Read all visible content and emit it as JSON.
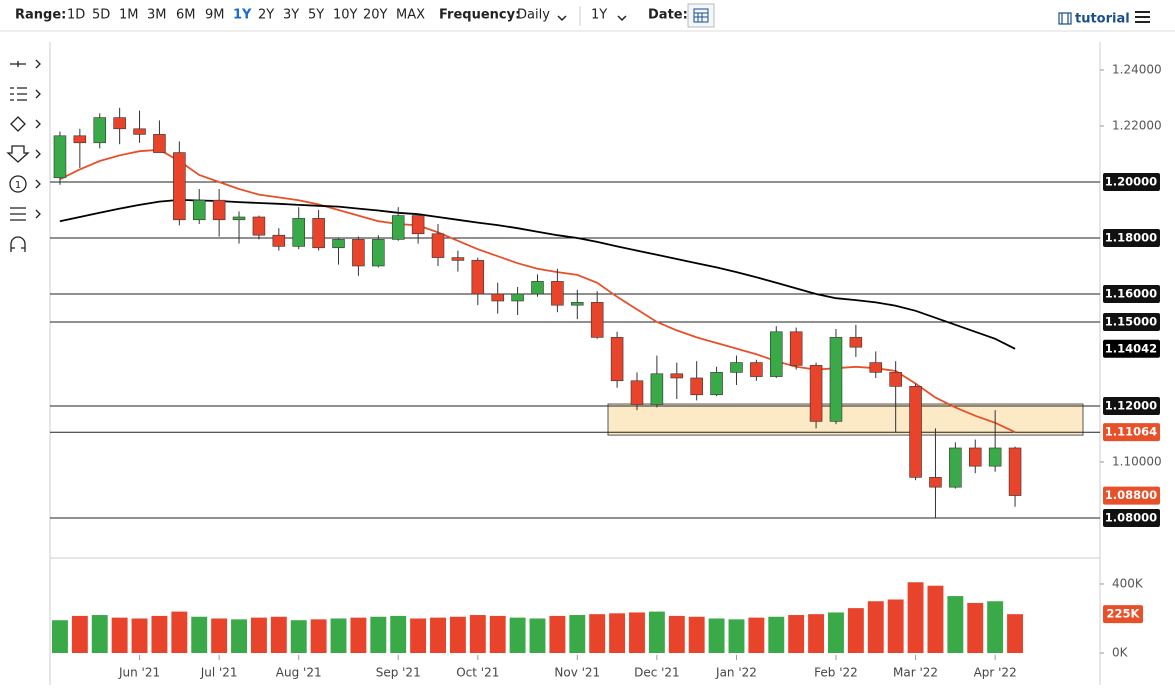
{
  "toolbar": {
    "range_label": "Range:",
    "ranges": [
      "1D",
      "5D",
      "1M",
      "3M",
      "6M",
      "9M",
      "1Y",
      "2Y",
      "3Y",
      "5Y",
      "10Y",
      "20Y",
      "MAX"
    ],
    "active_range": 6,
    "frequency_label": "Frequency:",
    "frequency": "Daily",
    "period": "1Y",
    "date_label": "Date:",
    "tutorial": "tutorial"
  },
  "chart_data": {
    "type": "candlestick",
    "categories": [
      null,
      null,
      null,
      null,
      "Jun '21",
      null,
      null,
      null,
      "Jul '21",
      null,
      null,
      null,
      "Aug '21",
      null,
      null,
      null,
      null,
      "Sep '21",
      null,
      null,
      null,
      "Oct '21",
      null,
      null,
      null,
      null,
      "Nov '21",
      null,
      null,
      null,
      "Dec '21",
      null,
      null,
      null,
      "Jan '22",
      null,
      null,
      null,
      null,
      "Feb '22",
      null,
      null,
      null,
      "Mar '22",
      null,
      null,
      null,
      "Apr '22",
      null
    ],
    "open": [
      1.2015,
      1.2165,
      1.214,
      1.223,
      1.219,
      1.217,
      1.2105,
      1.1865,
      1.1935,
      1.1865,
      1.1875,
      1.181,
      1.177,
      1.187,
      1.1765,
      1.1795,
      1.17,
      1.1795,
      1.188,
      1.1815,
      1.173,
      1.172,
      1.16,
      1.1575,
      1.16,
      1.1645,
      1.156,
      1.157,
      1.1445,
      1.129,
      1.1205,
      1.1315,
      1.13,
      1.124,
      1.132,
      1.1355,
      1.1305,
      1.1465,
      1.1345,
      1.1145,
      1.1445,
      1.1355,
      1.132,
      1.127,
      1.0945,
      1.091,
      1.105,
      1.0985,
      1.105
    ],
    "high": [
      1.218,
      1.219,
      1.2245,
      1.2265,
      1.2255,
      1.222,
      1.2145,
      1.1975,
      1.1975,
      1.1895,
      1.188,
      1.1835,
      1.191,
      1.19,
      1.18,
      1.1805,
      1.181,
      1.191,
      1.1885,
      1.185,
      1.1755,
      1.173,
      1.164,
      1.1625,
      1.167,
      1.169,
      1.1615,
      1.161,
      1.1465,
      1.132,
      1.138,
      1.1355,
      1.136,
      1.134,
      1.138,
      1.1365,
      1.1485,
      1.148,
      1.1355,
      1.1475,
      1.149,
      1.1395,
      1.136,
      1.128,
      1.112,
      1.107,
      1.108,
      1.1185,
      1.1055
    ],
    "low": [
      1.199,
      1.205,
      1.212,
      1.2135,
      1.214,
      1.211,
      1.1845,
      1.185,
      1.1805,
      1.178,
      1.1795,
      1.1755,
      1.176,
      1.1755,
      1.1705,
      1.1665,
      1.1695,
      1.179,
      1.178,
      1.17,
      1.168,
      1.156,
      1.153,
      1.1525,
      1.159,
      1.1535,
      1.151,
      1.144,
      1.1265,
      1.1185,
      1.1195,
      1.1225,
      1.122,
      1.1235,
      1.1275,
      1.129,
      1.13,
      1.133,
      1.112,
      1.1135,
      1.1375,
      1.13,
      1.1105,
      1.0935,
      1.08,
      1.0905,
      1.096,
      1.0965,
      1.084
    ],
    "close": [
      1.2165,
      1.214,
      1.223,
      1.219,
      1.217,
      1.2105,
      1.1865,
      1.1935,
      1.1865,
      1.1875,
      1.181,
      1.177,
      1.187,
      1.1765,
      1.1795,
      1.17,
      1.1795,
      1.188,
      1.1815,
      1.173,
      1.172,
      1.16,
      1.1575,
      1.16,
      1.1645,
      1.156,
      1.157,
      1.1445,
      1.129,
      1.1205,
      1.1315,
      1.13,
      1.124,
      1.132,
      1.1355,
      1.1305,
      1.1465,
      1.1345,
      1.1145,
      1.1445,
      1.141,
      1.132,
      1.127,
      1.0945,
      1.091,
      1.105,
      1.0985,
      1.105,
      1.088
    ],
    "up_color": "#3aaa48",
    "down_color": "#e8432b",
    "series": [
      {
        "color": "#e8502a",
        "value_label": "1.11064",
        "values": [
          1.201,
          1.2045,
          1.2075,
          1.2095,
          1.211,
          1.2115,
          1.2075,
          1.2025,
          1.2,
          1.1975,
          1.1955,
          1.1945,
          1.1935,
          1.192,
          1.19,
          1.188,
          1.186,
          1.185,
          1.1845,
          1.182,
          1.179,
          1.176,
          1.1735,
          1.171,
          1.169,
          1.1678,
          1.1668,
          1.164,
          1.159,
          1.1545,
          1.15,
          1.147,
          1.1445,
          1.1425,
          1.1405,
          1.1385,
          1.136,
          1.134,
          1.133,
          1.1335,
          1.134,
          1.1335,
          1.1325,
          1.128,
          1.123,
          1.1195,
          1.1165,
          1.114,
          1.11064
        ]
      },
      {
        "color": "#000000",
        "value_label": "1.14042",
        "values": [
          1.186,
          1.1875,
          1.189,
          1.1905,
          1.1918,
          1.193,
          1.1936,
          1.1934,
          1.1932,
          1.1928,
          1.1925,
          1.1922,
          1.1918,
          1.1915,
          1.1912,
          1.1905,
          1.1898,
          1.189,
          1.1885,
          1.1875,
          1.1865,
          1.1855,
          1.1846,
          1.1835,
          1.1822,
          1.181,
          1.18,
          1.1786,
          1.177,
          1.1755,
          1.174,
          1.1725,
          1.171,
          1.1695,
          1.1678,
          1.166,
          1.164,
          1.162,
          1.16,
          1.1585,
          1.1578,
          1.157,
          1.1558,
          1.154,
          1.1515,
          1.149,
          1.1465,
          1.144,
          1.14042
        ]
      }
    ],
    "ylim": [
      1.0657,
      1.25
    ],
    "yticks": [
      {
        "value": 1.24,
        "label": "1.24000"
      },
      {
        "value": 1.22,
        "label": "1.22000"
      },
      {
        "value": 1.1,
        "label": "1.10000"
      }
    ],
    "levels": [
      {
        "value": 1.2,
        "label": "1.20000"
      },
      {
        "value": 1.18,
        "label": "1.18000"
      },
      {
        "value": 1.16,
        "label": "1.16000"
      },
      {
        "value": 1.15,
        "label": "1.15000"
      },
      {
        "value": 1.12,
        "label": "1.12000"
      },
      {
        "value": 1.1106,
        "label": null
      },
      {
        "value": 1.08,
        "label": "1.08000"
      }
    ],
    "zone": [
      1.1096,
      1.1207
    ],
    "zone_color": "#fbe3b8",
    "last_price": {
      "value": 1.088,
      "label": "1.08800",
      "color": "#e8502a"
    },
    "volume": {
      "values": [
        190000,
        215000,
        220000,
        205000,
        200000,
        215000,
        240000,
        210000,
        200000,
        195000,
        205000,
        210000,
        190000,
        195000,
        200000,
        205000,
        210000,
        215000,
        200000,
        205000,
        210000,
        220000,
        215000,
        205000,
        200000,
        215000,
        220000,
        225000,
        230000,
        235000,
        240000,
        215000,
        210000,
        200000,
        195000,
        205000,
        210000,
        220000,
        225000,
        235000,
        260000,
        300000,
        310000,
        410000,
        390000,
        330000,
        290000,
        300000,
        225000
      ],
      "ylim": [
        0,
        539000
      ],
      "yticks": [
        {
          "value": 0,
          "label": "0K"
        },
        {
          "value": 400000,
          "label": "400K"
        }
      ],
      "last": {
        "value": 225000,
        "label": "225K",
        "color": "#e8502a"
      }
    }
  }
}
